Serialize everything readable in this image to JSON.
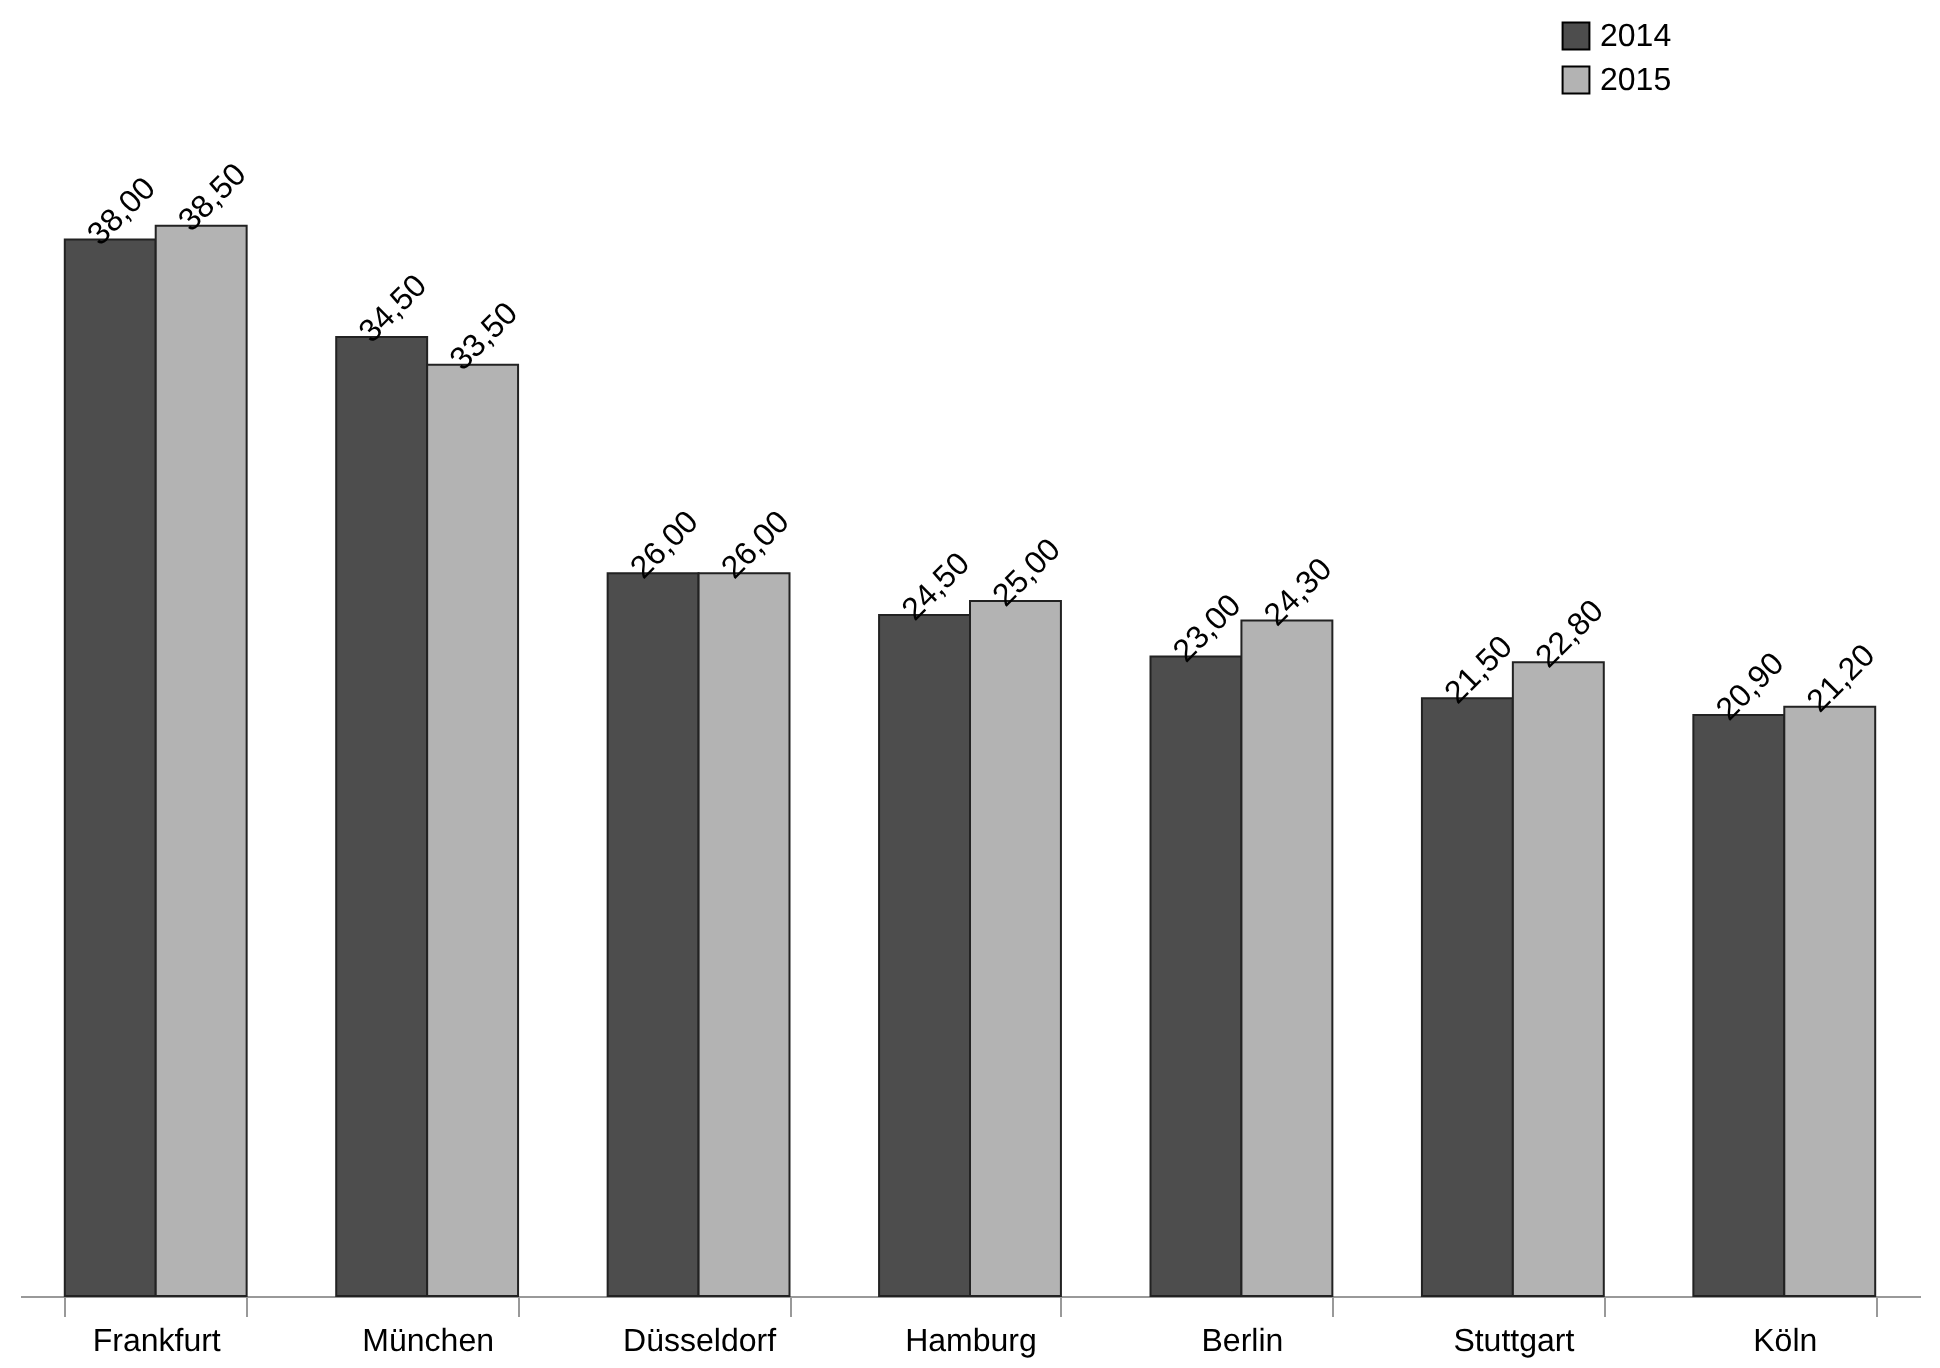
{
  "chart_data": {
    "type": "bar",
    "categories": [
      "Frankfurt",
      "München",
      "Düsseldorf",
      "Hamburg",
      "Berlin",
      "Stuttgart",
      "Köln"
    ],
    "series": [
      {
        "name": "2014",
        "color": "#4d4d4d",
        "values": [
          38,
          34.5,
          26,
          24.5,
          23,
          21.5,
          20.9
        ],
        "value_labels": [
          "38,00",
          "34,50",
          "26,00",
          "24,50",
          "23,00",
          "21,50",
          "20,90"
        ]
      },
      {
        "name": "2015",
        "color": "#b3b3b3",
        "values": [
          38.5,
          33.5,
          26,
          25,
          24.3,
          22.8,
          21.2
        ],
        "value_labels": [
          "38,50",
          "33,50",
          "26,00",
          "25,00",
          "24,30",
          "22,80",
          "21,20"
        ]
      }
    ],
    "legend": "top right"
  }
}
